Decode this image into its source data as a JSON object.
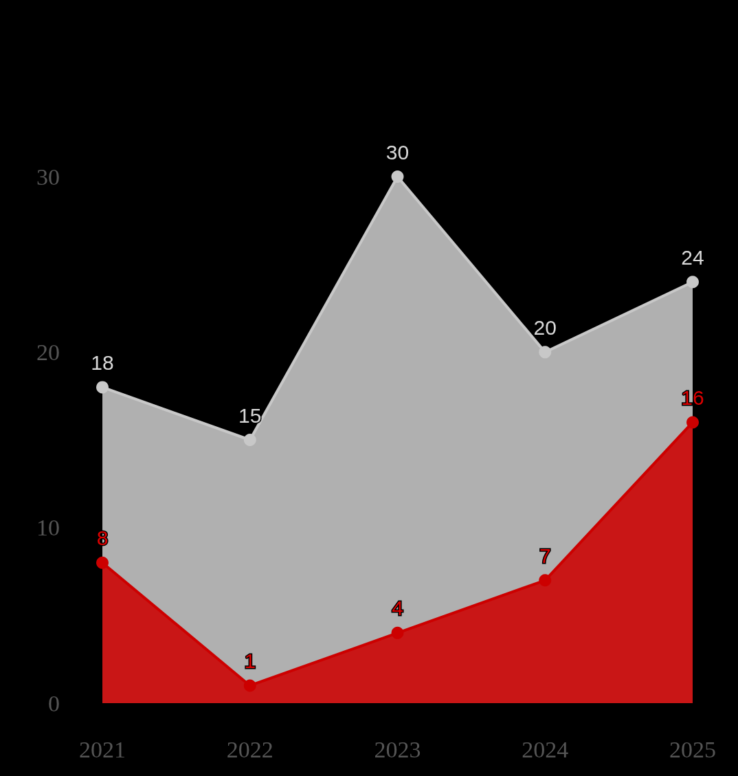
{
  "chart_data": {
    "type": "area",
    "categories": [
      "2021",
      "2022",
      "2023",
      "2024",
      "2025"
    ],
    "series": [
      {
        "color": "#c8c8c8",
        "values": [
          18,
          15,
          30,
          20,
          24
        ]
      },
      {
        "color": "#cc0000",
        "values": [
          8,
          1,
          4,
          7,
          16
        ]
      }
    ],
    "ylim": [
      0,
      30
    ],
    "yticks": [
      0,
      10,
      20,
      30
    ],
    "data_labels": true,
    "marker": "circle",
    "grid": false
  }
}
